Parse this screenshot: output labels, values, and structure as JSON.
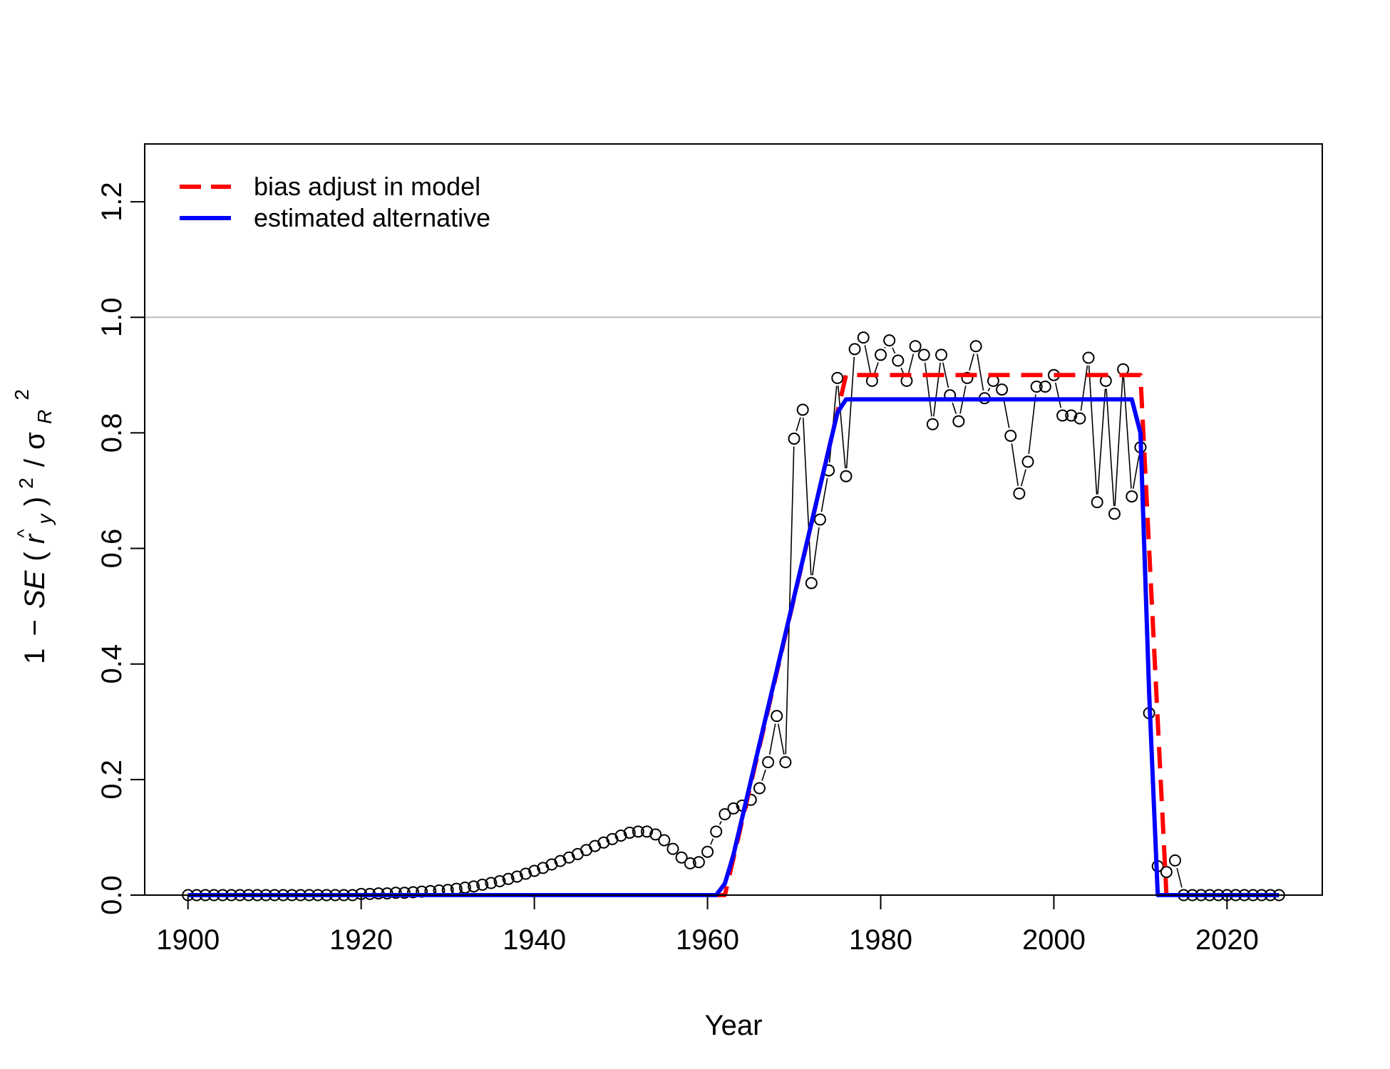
{
  "chart_data": {
    "type": "line",
    "xlabel": "Year",
    "ylabel": "1 − SE(r̂y)²/σR²",
    "ylabel_parts": {
      "one": "1",
      "minus": "−",
      "se": "SE",
      "open": "(",
      "r": "r",
      "hat": "^",
      "y_sub": "y",
      "close": ")",
      "sq1": "2",
      "slash": "/",
      "sigma": "σ",
      "R_sub": "R",
      "sq2": "2"
    },
    "xlim": [
      1895,
      2031
    ],
    "ylim": [
      0,
      1.3
    ],
    "x_ticks": [
      1900,
      1920,
      1940,
      1960,
      1980,
      2000,
      2020
    ],
    "x_tick_labels": [
      "1900",
      "1920",
      "1940",
      "1960",
      "1980",
      "2000",
      "2020"
    ],
    "y_ticks": [
      0.0,
      0.2,
      0.4,
      0.6,
      0.8,
      1.0,
      1.2
    ],
    "y_tick_labels": [
      "0.0",
      "0.2",
      "0.4",
      "0.6",
      "0.8",
      "1.0",
      "1.2"
    ],
    "reference_line": {
      "y": 1.0,
      "color": "#bebebe"
    },
    "legend": {
      "position": "top-left",
      "entries": [
        {
          "label": "bias adjust in model",
          "color": "#ff0000",
          "style": "dashed"
        },
        {
          "label": "estimated alternative",
          "color": "#0000ff",
          "style": "solid"
        }
      ]
    },
    "points": {
      "x": [
        1900,
        1901,
        1902,
        1903,
        1904,
        1905,
        1906,
        1907,
        1908,
        1909,
        1910,
        1911,
        1912,
        1913,
        1914,
        1915,
        1916,
        1917,
        1918,
        1919,
        1920,
        1921,
        1922,
        1923,
        1924,
        1925,
        1926,
        1927,
        1928,
        1929,
        1930,
        1931,
        1932,
        1933,
        1934,
        1935,
        1936,
        1937,
        1938,
        1939,
        1940,
        1941,
        1942,
        1943,
        1944,
        1945,
        1946,
        1947,
        1948,
        1949,
        1950,
        1951,
        1952,
        1953,
        1954,
        1955,
        1956,
        1957,
        1958,
        1959,
        1960,
        1961,
        1962,
        1963,
        1964,
        1965,
        1966,
        1967,
        1968,
        1969,
        1970,
        1971,
        1972,
        1973,
        1974,
        1975,
        1976,
        1977,
        1978,
        1979,
        1980,
        1981,
        1982,
        1983,
        1984,
        1985,
        1986,
        1987,
        1988,
        1989,
        1990,
        1991,
        1992,
        1993,
        1994,
        1995,
        1996,
        1997,
        1998,
        1999,
        2000,
        2001,
        2002,
        2003,
        2004,
        2005,
        2006,
        2007,
        2008,
        2009,
        2010,
        2011,
        2012,
        2013,
        2014,
        2015,
        2016,
        2017,
        2018,
        2019,
        2020,
        2021,
        2022,
        2023,
        2024,
        2025,
        2026
      ],
      "y": [
        0.0,
        0.0,
        0.0,
        0.0,
        0.0,
        0.0,
        0.0,
        0.0,
        0.0,
        0.0,
        0.0,
        0.0,
        0.0,
        0.0,
        0.0,
        0.0,
        0.0,
        0.0,
        0.0,
        0.0,
        0.002,
        0.002,
        0.003,
        0.003,
        0.004,
        0.004,
        0.005,
        0.006,
        0.007,
        0.008,
        0.009,
        0.011,
        0.013,
        0.015,
        0.018,
        0.021,
        0.024,
        0.028,
        0.032,
        0.037,
        0.042,
        0.047,
        0.053,
        0.059,
        0.065,
        0.071,
        0.078,
        0.085,
        0.091,
        0.097,
        0.103,
        0.108,
        0.11,
        0.11,
        0.105,
        0.095,
        0.08,
        0.065,
        0.055,
        0.057,
        0.075,
        0.11,
        0.14,
        0.15,
        0.155,
        0.165,
        0.185,
        0.23,
        0.31,
        0.23,
        0.79,
        0.84,
        0.54,
        0.65,
        0.735,
        0.895,
        0.725,
        0.945,
        0.965,
        0.89,
        0.935,
        0.96,
        0.925,
        0.89,
        0.95,
        0.935,
        0.815,
        0.935,
        0.865,
        0.82,
        0.895,
        0.95,
        0.86,
        0.89,
        0.875,
        0.795,
        0.695,
        0.75,
        0.88,
        0.88,
        0.9,
        0.83,
        0.83,
        0.825,
        0.93,
        0.68,
        0.89,
        0.66,
        0.91,
        0.69,
        0.775,
        0.315,
        0.05,
        0.04,
        0.06,
        0.0,
        0.0,
        0.0,
        0.0,
        0.0,
        0.0,
        0.0,
        0.0,
        0.0,
        0.0,
        0.0,
        0.0
      ]
    },
    "series": [
      {
        "name": "bias adjust in model",
        "color": "#ff0000",
        "style": "dashed",
        "x": [
          1900,
          1962,
          1976,
          2010,
          2013,
          2026
        ],
        "y": [
          0,
          0,
          0.9,
          0.9,
          0,
          0
        ]
      },
      {
        "name": "estimated alternative",
        "color": "#0000ff",
        "style": "solid",
        "x": [
          1900,
          1961,
          1962,
          1963,
          1975,
          1976,
          2009,
          2010,
          2011,
          2012,
          2026
        ],
        "y": [
          0,
          0,
          0.02,
          0.07,
          0.835,
          0.858,
          0.858,
          0.8,
          0.35,
          0,
          0
        ]
      }
    ]
  }
}
